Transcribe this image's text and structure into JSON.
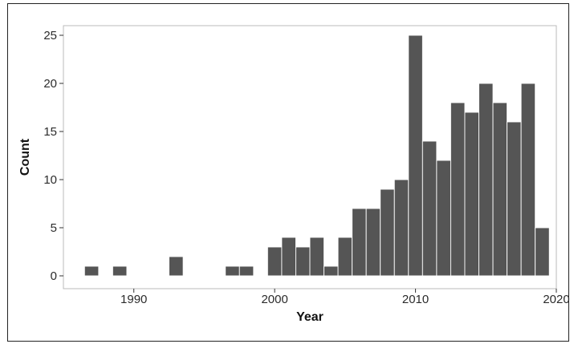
{
  "chart_data": {
    "type": "bar",
    "xlabel": "Year",
    "ylabel": "Count",
    "xlim": [
      1985,
      2020
    ],
    "ylim": [
      0,
      26
    ],
    "x_ticks": [
      1990,
      2000,
      2010,
      2020
    ],
    "y_ticks": [
      0,
      5,
      10,
      15,
      20,
      25
    ],
    "grid": false,
    "bar_color": "#555555",
    "bar_edge_color": "#ffffff",
    "panel_border_color": "#bbbbbb",
    "bins": [
      {
        "year": 1987,
        "count": 1
      },
      {
        "year": 1989,
        "count": 1
      },
      {
        "year": 1993,
        "count": 2
      },
      {
        "year": 1997,
        "count": 1
      },
      {
        "year": 1998,
        "count": 1
      },
      {
        "year": 2000,
        "count": 3
      },
      {
        "year": 2001,
        "count": 4
      },
      {
        "year": 2002,
        "count": 3
      },
      {
        "year": 2003,
        "count": 4
      },
      {
        "year": 2004,
        "count": 1
      },
      {
        "year": 2005,
        "count": 4
      },
      {
        "year": 2006,
        "count": 7
      },
      {
        "year": 2007,
        "count": 7
      },
      {
        "year": 2008,
        "count": 9
      },
      {
        "year": 2009,
        "count": 10
      },
      {
        "year": 2010,
        "count": 25
      },
      {
        "year": 2011,
        "count": 14
      },
      {
        "year": 2012,
        "count": 12
      },
      {
        "year": 2013,
        "count": 18
      },
      {
        "year": 2014,
        "count": 17
      },
      {
        "year": 2015,
        "count": 20
      },
      {
        "year": 2016,
        "count": 18
      },
      {
        "year": 2017,
        "count": 16
      },
      {
        "year": 2018,
        "count": 20
      },
      {
        "year": 2019,
        "count": 5
      }
    ]
  }
}
